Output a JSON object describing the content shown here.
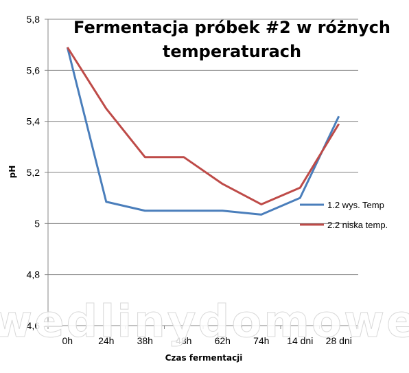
{
  "chart_data": {
    "type": "line",
    "title_lines": [
      "Fermentacja próbek #2 w różnych",
      "temperaturach"
    ],
    "xlabel": "Czas fermentacji",
    "ylabel": "pH",
    "categories": [
      "0h",
      "24h",
      "38h",
      "48h",
      "62h",
      "74h",
      "14 dni",
      "28 dni"
    ],
    "ylim": [
      4.6,
      5.8
    ],
    "yticks": [
      "4,6",
      "4,8",
      "5",
      "5,2",
      "5,4",
      "5,6",
      "5,8"
    ],
    "yticks_values": [
      4.6,
      4.8,
      5.0,
      5.2,
      5.4,
      5.6,
      5.8
    ],
    "grid": true,
    "legend_position": "right",
    "series": [
      {
        "name": "1.2 wys. Temp",
        "color": "#4a7ebb",
        "values": [
          5.69,
          5.085,
          5.05,
          5.05,
          5.05,
          5.035,
          5.1,
          5.42
        ]
      },
      {
        "name": "2.2 niska temp.",
        "color": "#be4b48",
        "values": [
          5.69,
          5.45,
          5.26,
          5.26,
          5.155,
          5.075,
          5.14,
          5.39
        ]
      }
    ]
  },
  "watermark": "wedlinydomowe.pl"
}
